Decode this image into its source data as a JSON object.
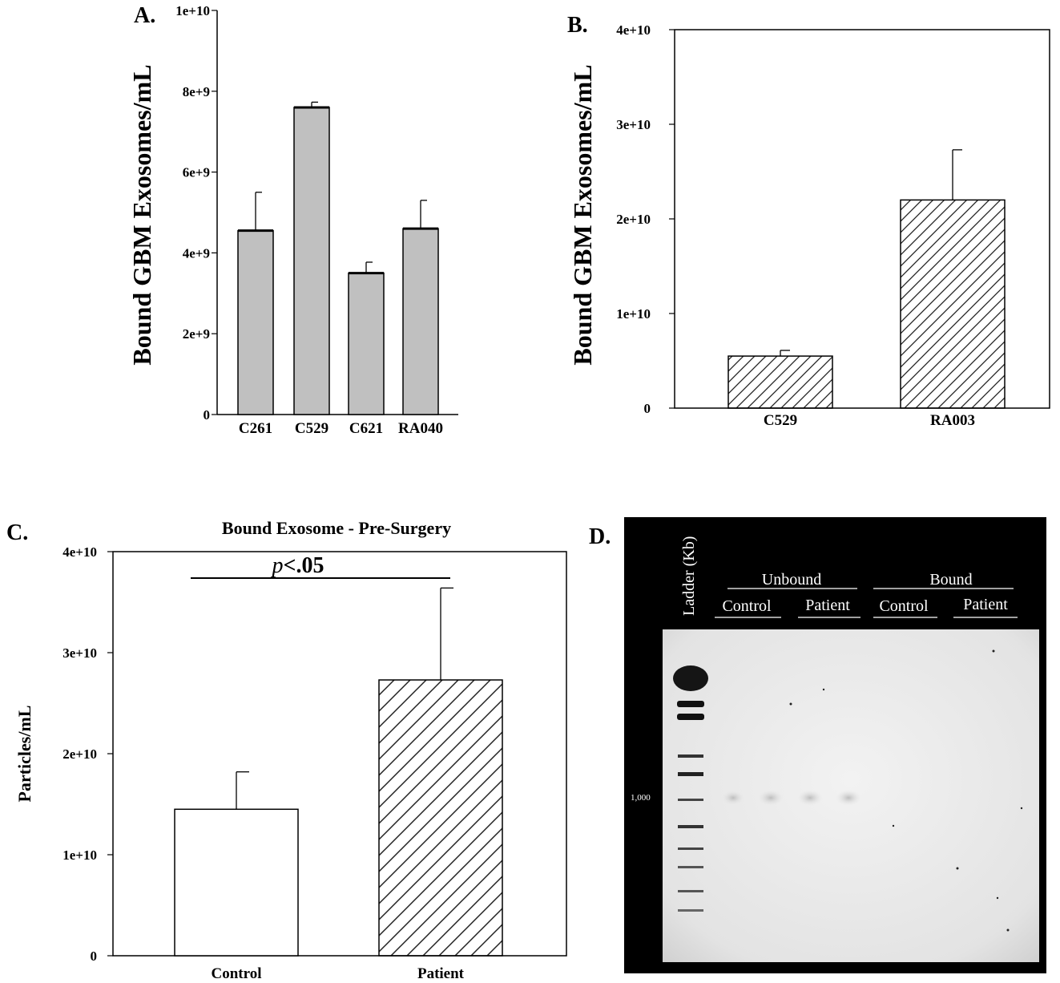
{
  "chart_data": [
    {
      "panel": "A.",
      "type": "bar",
      "title": "",
      "xlabel": "",
      "ylabel": "Bound GBM Exosomes/mL",
      "categories": [
        "C261",
        "C529",
        "C621",
        "RA040"
      ],
      "values": [
        4550000000.0,
        7600000000.0,
        3500000000.0,
        4600000000.0
      ],
      "errors": [
        950000000.0,
        130000000.0,
        270000000.0,
        700000000.0
      ],
      "ylim": [
        0,
        10000000000.0
      ],
      "yticks": [
        "0",
        "2e+9",
        "4e+9",
        "6e+9",
        "8e+9",
        "1e+10"
      ],
      "fill": "#c0c0c0",
      "grid": false
    },
    {
      "panel": "B.",
      "type": "bar",
      "title": "",
      "xlabel": "",
      "ylabel": "Bound GBM Exosomes/mL",
      "categories": [
        "C529",
        "RA003"
      ],
      "values": [
        5500000000.0,
        22000000000.0
      ],
      "errors": [
        600000000.0,
        5300000000.0
      ],
      "ylim": [
        0,
        40000000000.0
      ],
      "yticks": [
        "0",
        "1e+10",
        "2e+10",
        "3e+10",
        "4e+10"
      ],
      "fill": "hatched",
      "grid": false
    },
    {
      "panel": "C.",
      "type": "bar",
      "title": "Bound Exosome - Pre-Surgery",
      "xlabel": "",
      "ylabel": "Particles/mL",
      "categories": [
        "Control",
        "Patient"
      ],
      "values": [
        14500000000.0,
        27300000000.0
      ],
      "errors": [
        3700000000.0,
        9100000000.0
      ],
      "ylim": [
        0,
        40000000000.0
      ],
      "yticks": [
        "0",
        "1e+10",
        "2e+10",
        "3e+10",
        "4e+10"
      ],
      "fills": [
        "#ffffff",
        "hatched"
      ],
      "significance": {
        "p_italic": "p",
        "rest": "<.05"
      },
      "grid": false
    }
  ],
  "gel": {
    "panel": "D.",
    "ladder_label": "Ladder (Kb)",
    "marker_label": "1,000",
    "groups": [
      {
        "label": "Unbound",
        "lanes": [
          "Control",
          "Patient"
        ]
      },
      {
        "label": "Bound",
        "lanes": [
          "Control",
          "Patient"
        ]
      }
    ]
  }
}
